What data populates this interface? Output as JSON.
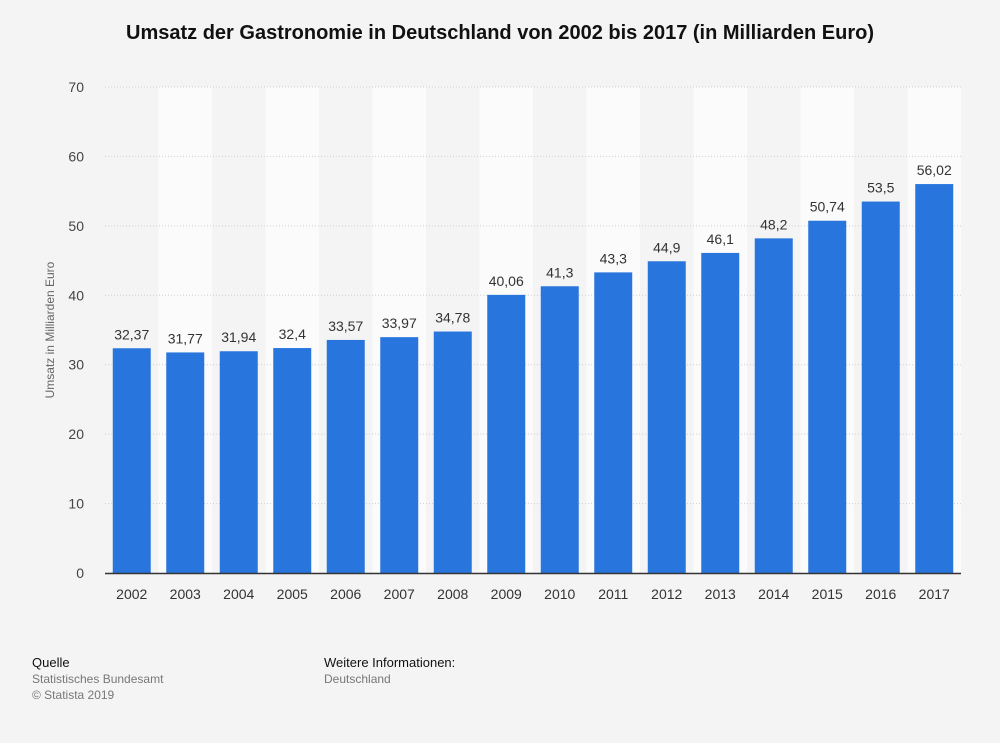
{
  "chart_data": {
    "type": "bar",
    "title": "Umsatz der Gastronomie in Deutschland von 2002 bis 2017 (in Milliarden Euro)",
    "xlabel": "",
    "ylabel": "Umsatz in Milliarden Euro",
    "categories": [
      "2002",
      "2003",
      "2004",
      "2005",
      "2006",
      "2007",
      "2008",
      "2009",
      "2010",
      "2011",
      "2012",
      "2013",
      "2014",
      "2015",
      "2016",
      "2017"
    ],
    "values": [
      32.37,
      31.77,
      31.94,
      32.4,
      33.57,
      33.97,
      34.78,
      40.06,
      41.3,
      43.3,
      44.9,
      46.1,
      48.2,
      50.74,
      53.5,
      56.02
    ],
    "value_labels": [
      "32,37",
      "31,77",
      "31,94",
      "32,4",
      "33,57",
      "33,97",
      "34,78",
      "40,06",
      "41,3",
      "43,3",
      "44,9",
      "46,1",
      "48,2",
      "50,74",
      "53,5",
      "56,02"
    ],
    "ylim": [
      0,
      70
    ],
    "yticks": [
      0,
      10,
      20,
      30,
      40,
      50,
      60,
      70
    ],
    "grid": true,
    "bar_color": "#2876dd"
  },
  "footer": {
    "source_heading": "Quelle",
    "source_lines": [
      "Statistisches Bundesamt",
      "© Statista 2019"
    ],
    "info_heading": "Weitere Informationen:",
    "info_lines": [
      "Deutschland"
    ]
  }
}
